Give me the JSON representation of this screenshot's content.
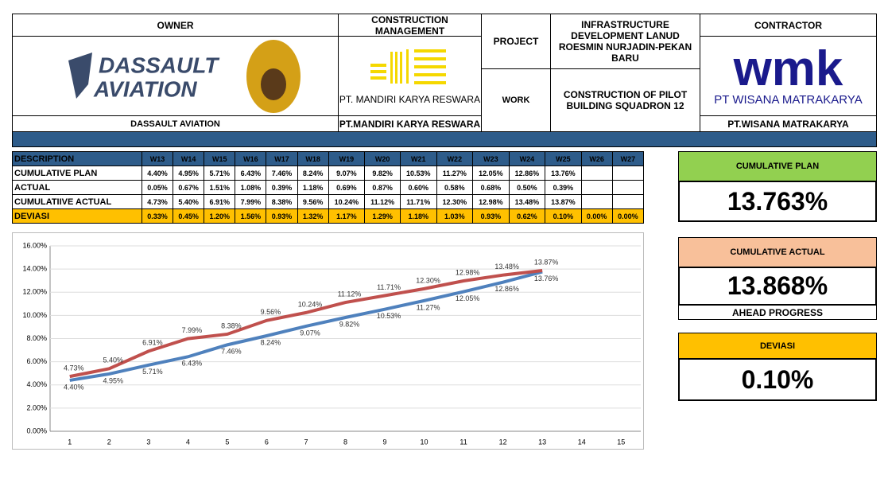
{
  "header": {
    "owner_title": "OWNER",
    "owner_logo": "DASSAULT",
    "owner_logo2": "AVIATION",
    "owner_name": "DASSAULT AVIATION",
    "cm_title": "CONSTRUCTION MANAGEMENT",
    "cm_logo": "PT. MANDIRI KARYA RESWARA",
    "cm_name": "PT.MANDIRI KARYA RESWARA",
    "project_label": "PROJECT",
    "project_value": "INFRASTRUCTURE DEVELOPMENT LANUD ROESMIN NURJADIN-PEKAN BARU",
    "work_label": "WORK",
    "work_value": "CONSTRUCTION OF PILOT BUILDING SQUADRON 12",
    "contractor_title": "CONTRACTOR",
    "contractor_logo": "wmk",
    "contractor_logo2": "PT WISANA MATRAKARYA",
    "contractor_name": "PT.WISANA MATRAKARYA"
  },
  "table": {
    "columns": [
      "DESCRIPTION",
      "W13",
      "W14",
      "W15",
      "W16",
      "W17",
      "W18",
      "W19",
      "W20",
      "W21",
      "W22",
      "W23",
      "W24",
      "W25",
      "W26",
      "W27"
    ],
    "rows": [
      [
        "CUMULATIVE PLAN",
        "4.40%",
        "4.95%",
        "5.71%",
        "6.43%",
        "7.46%",
        "8.24%",
        "9.07%",
        "9.82%",
        "10.53%",
        "11.27%",
        "12.05%",
        "12.86%",
        "13.76%"
      ],
      [
        "ACTUAL",
        "0.05%",
        "0.67%",
        "1.51%",
        "1.08%",
        "0.39%",
        "1.18%",
        "0.69%",
        "0.87%",
        "0.60%",
        "0.58%",
        "0.68%",
        "0.50%",
        "0.39%"
      ],
      [
        "CUMULATIIVE ACTUAL",
        "4.73%",
        "5.40%",
        "6.91%",
        "7.99%",
        "8.38%",
        "9.56%",
        "10.24%",
        "11.12%",
        "11.71%",
        "12.30%",
        "12.98%",
        "13.48%",
        "13.87%"
      ],
      [
        "DEVIASI",
        "0.33%",
        "0.45%",
        "1.20%",
        "1.56%",
        "0.93%",
        "1.32%",
        "1.17%",
        "1.29%",
        "1.18%",
        "1.03%",
        "0.93%",
        "0.62%",
        "0.10%",
        "0.00%",
        "0.00%"
      ]
    ]
  },
  "chart_data": {
    "type": "line",
    "x": [
      1,
      2,
      3,
      4,
      5,
      6,
      7,
      8,
      9,
      10,
      11,
      12,
      13
    ],
    "xlim": [
      0.5,
      15.5
    ],
    "xticks": [
      1,
      2,
      3,
      4,
      5,
      6,
      7,
      8,
      9,
      10,
      11,
      12,
      13,
      14,
      15
    ],
    "ylim": [
      0,
      16
    ],
    "yticks": [
      {
        "value": 0,
        "label": "0.00%"
      },
      {
        "value": 2,
        "label": "2.00%"
      },
      {
        "value": 4,
        "label": "4.00%"
      },
      {
        "value": 6,
        "label": "6.00%"
      },
      {
        "value": 8,
        "label": "8.00%"
      },
      {
        "value": 10,
        "label": "10.00%"
      },
      {
        "value": 12,
        "label": "12.00%"
      },
      {
        "value": 14,
        "label": "14.00%"
      },
      {
        "value": 16,
        "label": "16.00%"
      }
    ],
    "series": [
      {
        "color": "#4f81bd",
        "values": [
          4.4,
          4.95,
          5.71,
          6.43,
          7.46,
          8.24,
          9.07,
          9.82,
          10.53,
          11.27,
          12.05,
          12.86,
          13.76
        ],
        "value_labels": [
          "4.40%",
          "4.95%",
          "5.71%",
          "6.43%",
          "7.46%",
          "8.24%",
          "9.07%",
          "9.82%",
          "10.53%",
          "11.27%",
          "12.05%",
          "12.86%",
          "13.76%"
        ]
      },
      {
        "color": "#c0504d",
        "values": [
          4.73,
          5.4,
          6.91,
          7.99,
          8.38,
          9.56,
          10.24,
          11.12,
          11.71,
          12.3,
          12.98,
          13.48,
          13.87
        ],
        "value_labels": [
          "4.73%",
          "5.40%",
          "6.91%",
          "7.99%",
          "8.38%",
          "9.56%",
          "10.24%",
          "11.12%",
          "11.71%",
          "12.30%",
          "12.98%",
          "13.48%",
          "13.87%"
        ]
      }
    ]
  },
  "panels": {
    "plan_title": "CUMULATIVE PLAN",
    "plan_value": "13.763%",
    "actual_title": "CUMULATIVE ACTUAL",
    "actual_value": "13.868%",
    "ahead": "AHEAD PROGRESS",
    "dev_title": "DEVIASI",
    "dev_value": "0.10%"
  }
}
